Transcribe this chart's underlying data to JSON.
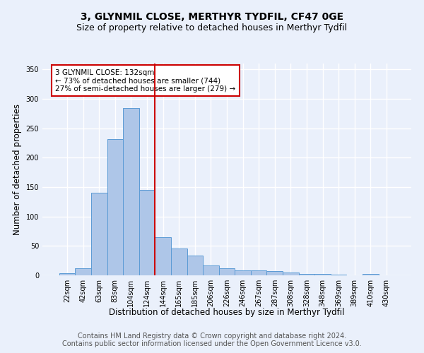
{
  "title": "3, GLYNMIL CLOSE, MERTHYR TYDFIL, CF47 0GE",
  "subtitle": "Size of property relative to detached houses in Merthyr Tydfil",
  "xlabel": "Distribution of detached houses by size in Merthyr Tydfil",
  "ylabel": "Number of detached properties",
  "categories": [
    "22sqm",
    "42sqm",
    "63sqm",
    "83sqm",
    "104sqm",
    "124sqm",
    "144sqm",
    "165sqm",
    "185sqm",
    "206sqm",
    "226sqm",
    "246sqm",
    "267sqm",
    "287sqm",
    "308sqm",
    "328sqm",
    "348sqm",
    "369sqm",
    "389sqm",
    "410sqm",
    "430sqm"
  ],
  "bar_heights": [
    4,
    12,
    140,
    232,
    285,
    145,
    65,
    46,
    34,
    17,
    12,
    8,
    8,
    7,
    5,
    3,
    2,
    1,
    0,
    2,
    0
  ],
  "bar_color": "#aec6e8",
  "bar_edge_color": "#5b9bd5",
  "vline_x": 5.5,
  "vline_color": "#cc0000",
  "annotation_title": "3 GLYNMIL CLOSE: 132sqm",
  "annotation_line1": "← 73% of detached houses are smaller (744)",
  "annotation_line2": "27% of semi-detached houses are larger (279) →",
  "annotation_box_color": "#ffffff",
  "annotation_border_color": "#cc0000",
  "ylim": [
    0,
    360
  ],
  "yticks": [
    0,
    50,
    100,
    150,
    200,
    250,
    300,
    350
  ],
  "footer1": "Contains HM Land Registry data © Crown copyright and database right 2024.",
  "footer2": "Contains public sector information licensed under the Open Government Licence v3.0.",
  "bg_color": "#eaf0fb",
  "plot_bg_color": "#eaf0fb",
  "grid_color": "#ffffff",
  "title_fontsize": 10,
  "subtitle_fontsize": 9,
  "xlabel_fontsize": 8.5,
  "ylabel_fontsize": 8.5,
  "tick_fontsize": 7,
  "footer_fontsize": 7
}
